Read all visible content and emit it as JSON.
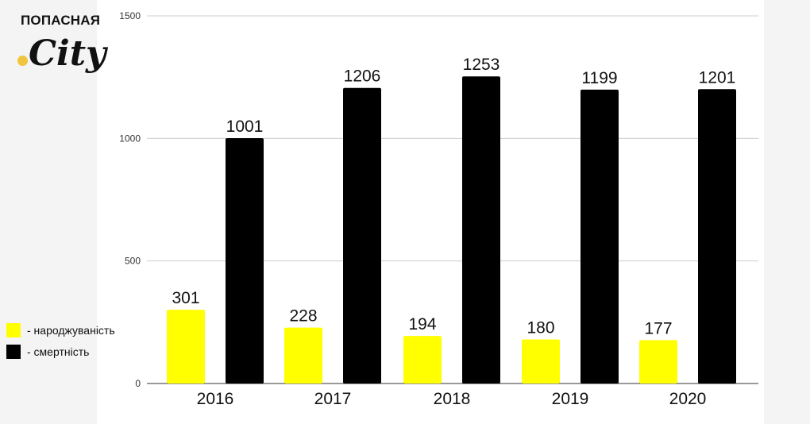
{
  "logo": {
    "top_text": "ПОПАСНАЯ",
    "script_text": "City",
    "dot_color": "#f0c43c"
  },
  "legend": [
    {
      "label": "- народжуваність",
      "color": "#ffff00"
    },
    {
      "label": "- смертність",
      "color": "#000000"
    }
  ],
  "chart_data": {
    "type": "bar",
    "categories": [
      "2016",
      "2017",
      "2018",
      "2019",
      "2020"
    ],
    "series": [
      {
        "name": "- народжуваність",
        "color": "#ffff00",
        "values": [
          301,
          228,
          194,
          180,
          177
        ]
      },
      {
        "name": "- смертність",
        "color": "#000000",
        "values": [
          1001,
          1206,
          1253,
          1199,
          1201
        ]
      }
    ],
    "y_ticks": [
      "0",
      "500",
      "1000",
      "1500"
    ],
    "ylim": [
      0,
      1500
    ],
    "grid": true,
    "legend_position": "left"
  }
}
